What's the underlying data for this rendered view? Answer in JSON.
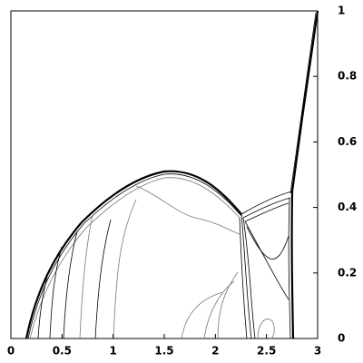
{
  "chart_data": {
    "type": "contour",
    "xlim": [
      0,
      3
    ],
    "ylim": [
      0,
      1
    ],
    "xticks": [
      0,
      0.5,
      1,
      1.5,
      2,
      2.5,
      3
    ],
    "yticks": [
      0,
      0.2,
      0.4,
      0.6,
      0.8,
      1
    ],
    "y_axis_side": "right"
  }
}
